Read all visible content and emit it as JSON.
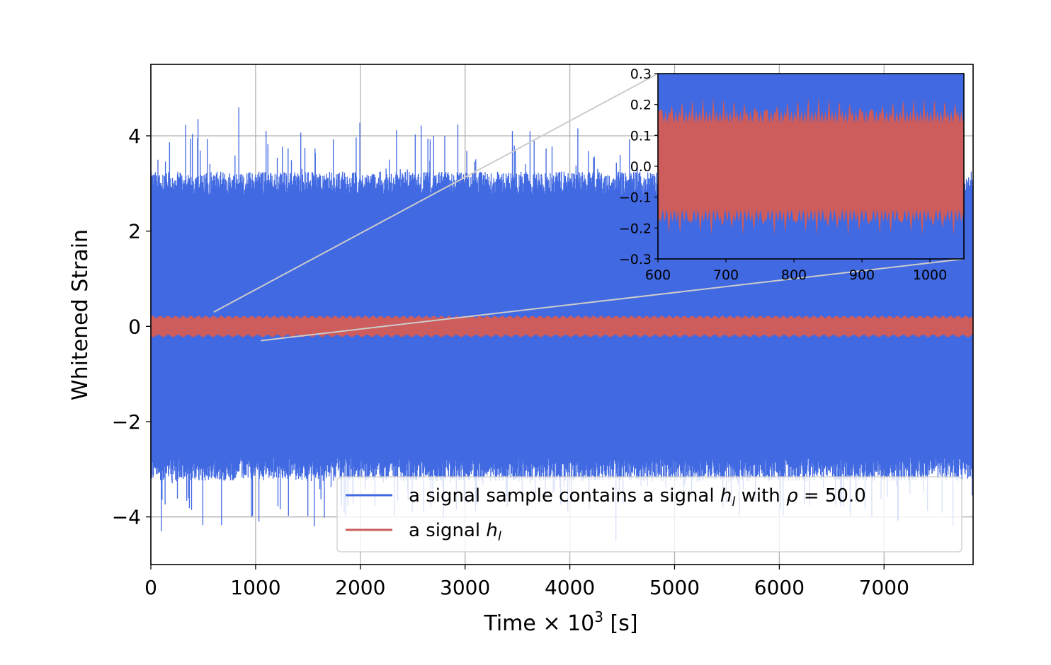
{
  "chart_data": [
    {
      "type": "line",
      "xlabel": "Time × 10³ [s]",
      "xlabel_parts": {
        "main": "Time × 10",
        "exp": "3",
        "unit": " [s]"
      },
      "ylabel": "Whitened  Strain",
      "xlim": [
        0,
        7850
      ],
      "ylim": [
        -5,
        5.5
      ],
      "xticks": [
        0,
        1000,
        2000,
        3000,
        4000,
        5000,
        6000,
        7000
      ],
      "xtick_labels": [
        "0",
        "1000",
        "2000",
        "3000",
        "4000",
        "5000",
        "6000",
        "7000"
      ],
      "yticks": [
        4,
        2,
        0,
        -2,
        -4
      ],
      "ytick_labels": [
        "4",
        "2",
        "0",
        "−2",
        "−4"
      ],
      "grid": true,
      "legend_position": "lower-right",
      "series": [
        {
          "name": "a signal sample contains a signal h_l with ρ = 50.0",
          "color": "#4169e1",
          "description": "dense noise-dominated whitened strain",
          "envelope": {
            "upper_typical": 3.0,
            "lower_typical": -3.0,
            "max": 4.6,
            "min": -4.3
          }
        },
        {
          "name": "a signal h_l",
          "color": "#cd5c5c",
          "description": "injected signal",
          "envelope": {
            "upper": 0.2,
            "lower": -0.2
          }
        }
      ]
    },
    {
      "type": "line",
      "role": "inset",
      "xlim": [
        600,
        1050
      ],
      "ylim": [
        -0.3,
        0.3
      ],
      "xticks": [
        600,
        700,
        800,
        900,
        1000
      ],
      "xtick_labels": [
        "600",
        "700",
        "800",
        "900",
        "1000"
      ],
      "yticks": [
        0.3,
        0.2,
        0.1,
        0.0,
        -0.1,
        -0.2,
        -0.3
      ],
      "ytick_labels": [
        "0.3",
        "0.2",
        "0.1",
        "0.0",
        "−0.1",
        "−0.2",
        "−0.3"
      ],
      "zoom_region": {
        "x": [
          600,
          1050
        ],
        "y": [
          -0.3,
          0.3
        ]
      },
      "series": [
        {
          "name": "a signal sample contains a signal h_l with ρ = 50.0",
          "color": "#4169e1"
        },
        {
          "name": "a signal h_l",
          "color": "#cd5c5c",
          "envelope": {
            "upper": 0.2,
            "lower": -0.2
          }
        }
      ]
    }
  ],
  "legend": {
    "entry1": {
      "prefix": "a signal sample contains a signal ",
      "h": "h",
      "sub": "l",
      "mid": " with ",
      "rho": "ρ",
      "suffix": " = 50.0"
    },
    "entry2": {
      "prefix": "a signal ",
      "h": "h",
      "sub": "l"
    }
  },
  "colors": {
    "blue": "#4169e1",
    "red": "#cd5c5c",
    "grid": "#b0b0b0",
    "connector": "#cccccc"
  }
}
